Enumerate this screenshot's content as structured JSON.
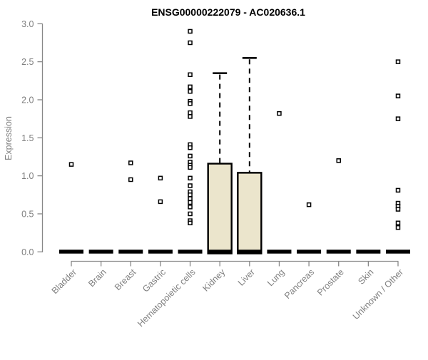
{
  "chart_data": {
    "type": "boxplot",
    "title": "ENSG00000222079 - AC020636.1",
    "xlabel": "",
    "ylabel": "Expression",
    "ylim": [
      0,
      3
    ],
    "yticks": [
      0,
      0.5,
      1,
      1.5,
      2,
      2.5,
      3
    ],
    "ytick_labels": [
      "0.0",
      "0.5",
      "1.0",
      "1.5",
      "2.0",
      "2.5",
      "3.0"
    ],
    "grid": false,
    "legend": "none",
    "categories": [
      "Bladder",
      "Brain",
      "Breast",
      "Gastric",
      "Hematopoietic cells",
      "Kidney",
      "Liver",
      "Lung",
      "Pancreas",
      "Prostate",
      "Skin",
      "Unknown / Other"
    ],
    "boxes": [
      {
        "category": "Bladder",
        "median": 0,
        "q1": 0,
        "q3": 0,
        "whisker_low": 0,
        "whisker_high": 0,
        "outliers": [
          1.15
        ]
      },
      {
        "category": "Brain",
        "median": 0,
        "q1": 0,
        "q3": 0,
        "whisker_low": 0,
        "whisker_high": 0,
        "outliers": []
      },
      {
        "category": "Breast",
        "median": 0,
        "q1": 0,
        "q3": 0,
        "whisker_low": 0,
        "whisker_high": 0,
        "outliers": [
          1.17,
          0.95
        ]
      },
      {
        "category": "Gastric",
        "median": 0,
        "q1": 0,
        "q3": 0,
        "whisker_low": 0,
        "whisker_high": 0,
        "outliers": [
          0.97,
          0.66
        ]
      },
      {
        "category": "Hematopoietic cells",
        "median": 0,
        "q1": 0,
        "q3": 0,
        "whisker_low": 0,
        "whisker_high": 0,
        "outliers": [
          2.9,
          2.75,
          2.33,
          2.17,
          2.11,
          1.98,
          1.95,
          1.83,
          1.78,
          1.41,
          1.37,
          1.26,
          1.18,
          1.14,
          1.11,
          0.97,
          0.87,
          0.79,
          0.75,
          0.7,
          0.65,
          0.59,
          0.5,
          0.41,
          0.38
        ]
      },
      {
        "category": "Kidney",
        "median": 0,
        "q1": 0,
        "q3": 1.16,
        "whisker_low": 0,
        "whisker_high": 2.35,
        "outliers": []
      },
      {
        "category": "Liver",
        "median": 0,
        "q1": 0,
        "q3": 1.04,
        "whisker_low": 0,
        "whisker_high": 2.55,
        "outliers": []
      },
      {
        "category": "Lung",
        "median": 0,
        "q1": 0,
        "q3": 0,
        "whisker_low": 0,
        "whisker_high": 0,
        "outliers": [
          1.82
        ]
      },
      {
        "category": "Pancreas",
        "median": 0,
        "q1": 0,
        "q3": 0,
        "whisker_low": 0,
        "whisker_high": 0,
        "outliers": [
          0.62
        ]
      },
      {
        "category": "Prostate",
        "median": 0,
        "q1": 0,
        "q3": 0,
        "whisker_low": 0,
        "whisker_high": 0,
        "outliers": [
          1.2
        ]
      },
      {
        "category": "Skin",
        "median": 0,
        "q1": 0,
        "q3": 0,
        "whisker_low": 0,
        "whisker_high": 0,
        "outliers": []
      },
      {
        "category": "Unknown / Other",
        "median": 0,
        "q1": 0,
        "q3": 0,
        "whisker_low": 0,
        "whisker_high": 0,
        "outliers": [
          2.5,
          2.05,
          1.75,
          0.81,
          0.64,
          0.6,
          0.56,
          0.38,
          0.32
        ]
      }
    ],
    "colors": {
      "box_fill": "#EBE5CC",
      "box_stroke": "#000000",
      "median_bar": "#000000",
      "outlier_stroke": "#000000",
      "outlier_fill": "#ffffff",
      "axis": "#888888",
      "tick_label": "#7f7f7f",
      "title": "#000000",
      "background": "#ffffff"
    }
  }
}
